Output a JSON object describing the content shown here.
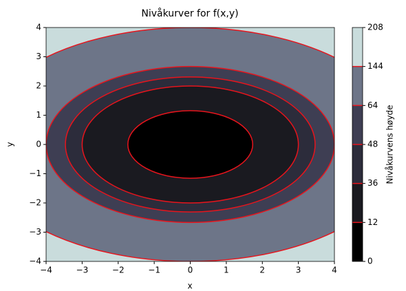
{
  "chart_data": {
    "type": "contourf",
    "title": "Nivåkurver for f(x,y)",
    "x_label": "x",
    "y_label": "y",
    "colorbar_label": "Nivåkurvens høyde",
    "coefficients": [
      4,
      9
    ],
    "levels": [
      0,
      12,
      36,
      48,
      64,
      144,
      208
    ],
    "fill_colors": [
      "#000000",
      "#1a1a20",
      "#2c2c3b",
      "#3e3e53",
      "#6d7588",
      "#c9dcdc"
    ],
    "line_color": "#e8141c",
    "xlim": [
      -4,
      4
    ],
    "ylim": [
      -4,
      4
    ],
    "xticks": [
      {
        "value": -4,
        "label": "−4"
      },
      {
        "value": -3,
        "label": "−3"
      },
      {
        "value": -2,
        "label": "−2"
      },
      {
        "value": -1,
        "label": "−1"
      },
      0,
      1,
      2,
      3,
      4
    ],
    "yticks": [
      {
        "value": -4,
        "label": "−4"
      },
      {
        "value": -3,
        "label": "−3"
      },
      {
        "value": -2,
        "label": "−2"
      },
      {
        "value": -1,
        "label": "−1"
      },
      0,
      1,
      2,
      3,
      4
    ]
  }
}
